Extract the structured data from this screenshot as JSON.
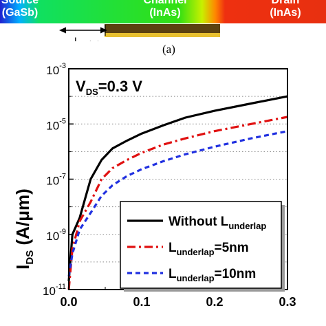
{
  "device_strip": {
    "source": {
      "top": "Source",
      "material": "(GaSb)"
    },
    "channel": {
      "top": "Channel",
      "material": "(InAs)"
    },
    "drain": {
      "top": "Drain",
      "material": "(InAs)"
    },
    "underlap_label_main": "L",
    "underlap_label_sub": "underlap"
  },
  "subfigure_label": "(a)",
  "chart_data": {
    "type": "line",
    "yscale": "log",
    "xlim": [
      0.0,
      0.3
    ],
    "ylim": [
      1e-11,
      0.001
    ],
    "x_ticks": [
      "0.0",
      "0.1",
      "0.2",
      "0.3"
    ],
    "y_tick_mantissa": "10",
    "y_tick_exponents": [
      "-11",
      "-9",
      "-7",
      "-5",
      "-3"
    ],
    "ylabel_main": "I",
    "ylabel_sub": "DS",
    "ylabel_rest": " (A/μm)",
    "annotation": {
      "main": "V",
      "sub": "DS",
      "rest": "=0.3 V"
    },
    "grid": "horizontal dotted",
    "legend_position": "bottom-right",
    "series": [
      {
        "name": "Without L",
        "name_sub": "underlap",
        "name_rest": "",
        "color": "#000000",
        "dash": "solid",
        "x": [
          0.0,
          0.005,
          0.015,
          0.03,
          0.045,
          0.06,
          0.08,
          0.1,
          0.13,
          0.16,
          0.2,
          0.25,
          0.3
        ],
        "y": [
          2e-11,
          1e-09,
          4e-09,
          1e-07,
          5e-07,
          1.3e-06,
          2.5e-06,
          4.5e-06,
          9e-06,
          1.7e-05,
          3e-05,
          5.5e-05,
          0.0001
        ]
      },
      {
        "name": "L",
        "name_sub": "underlap",
        "name_rest": "=5nm",
        "color": "#e01010",
        "dash": "dashdot",
        "x": [
          0.0,
          0.005,
          0.015,
          0.03,
          0.045,
          0.06,
          0.08,
          0.1,
          0.13,
          0.16,
          0.2,
          0.25,
          0.3
        ],
        "y": [
          1e-11,
          3e-10,
          3e-09,
          1.5e-08,
          1e-07,
          2.5e-07,
          5e-07,
          9e-07,
          1.8e-06,
          3e-06,
          5.5e-06,
          1e-05,
          1.8e-05
        ]
      },
      {
        "name": "L",
        "name_sub": "underlap",
        "name_rest": "=10nm",
        "color": "#2030e0",
        "dash": "dashed",
        "x": [
          0.0,
          0.005,
          0.015,
          0.03,
          0.045,
          0.06,
          0.08,
          0.1,
          0.13,
          0.16,
          0.2,
          0.25,
          0.3
        ],
        "y": [
          3e-11,
          2e-10,
          1.5e-09,
          6e-09,
          2.5e-08,
          6e-08,
          1.3e-07,
          2.3e-07,
          4.5e-07,
          8e-07,
          1.5e-06,
          3e-06,
          5.5e-06
        ]
      }
    ]
  }
}
